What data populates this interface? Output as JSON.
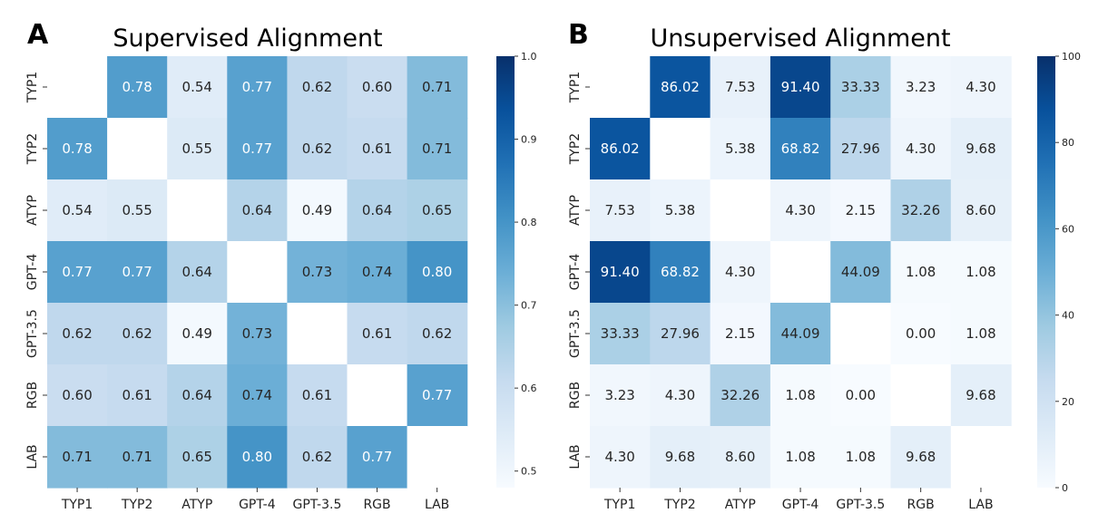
{
  "panels": [
    {
      "letter": "A",
      "title": "Supervised Alignment",
      "decimals": 2,
      "colorbar": {
        "min": 0.48,
        "max": 1.0,
        "ticks": [
          0.5,
          0.6,
          0.7,
          0.8,
          0.9,
          1.0
        ],
        "tick_labels": [
          "0.5",
          "0.6",
          "0.7",
          "0.8",
          "0.9",
          "1.0"
        ]
      }
    },
    {
      "letter": "B",
      "title": "Unsupervised Alignment",
      "decimals": 2,
      "colorbar": {
        "min": 0,
        "max": 100,
        "ticks": [
          0,
          20,
          40,
          60,
          80,
          100
        ],
        "tick_labels": [
          "0",
          "20",
          "40",
          "60",
          "80",
          "100"
        ]
      }
    }
  ],
  "chart_data": [
    {
      "type": "heatmap",
      "title": "Supervised Alignment",
      "x": [
        "TYP1",
        "TYP2",
        "ATYP",
        "GPT-4",
        "GPT-3.5",
        "RGB",
        "LAB"
      ],
      "y": [
        "TYP1",
        "TYP2",
        "ATYP",
        "GPT-4",
        "GPT-3.5",
        "RGB",
        "LAB"
      ],
      "values": [
        [
          null,
          0.78,
          0.54,
          0.77,
          0.62,
          0.6,
          0.71
        ],
        [
          0.78,
          null,
          0.55,
          0.77,
          0.62,
          0.61,
          0.71
        ],
        [
          0.54,
          0.55,
          null,
          0.64,
          0.49,
          0.64,
          0.65
        ],
        [
          0.77,
          0.77,
          0.64,
          null,
          0.73,
          0.74,
          0.8
        ],
        [
          0.62,
          0.62,
          0.49,
          0.73,
          null,
          0.61,
          0.62
        ],
        [
          0.6,
          0.61,
          0.64,
          0.74,
          0.61,
          null,
          0.77
        ],
        [
          0.71,
          0.71,
          0.65,
          0.8,
          0.62,
          0.77,
          null
        ]
      ],
      "colormap": "Blues",
      "colorbar_range": [
        0.48,
        1.0
      ]
    },
    {
      "type": "heatmap",
      "title": "Unsupervised Alignment",
      "x": [
        "TYP1",
        "TYP2",
        "ATYP",
        "GPT-4",
        "GPT-3.5",
        "RGB",
        "LAB"
      ],
      "y": [
        "TYP1",
        "TYP2",
        "ATYP",
        "GPT-4",
        "GPT-3.5",
        "RGB",
        "LAB"
      ],
      "values": [
        [
          null,
          86.02,
          7.53,
          91.4,
          33.33,
          3.23,
          4.3
        ],
        [
          86.02,
          null,
          5.38,
          68.82,
          27.96,
          4.3,
          9.68
        ],
        [
          7.53,
          5.38,
          null,
          4.3,
          2.15,
          32.26,
          8.6
        ],
        [
          91.4,
          68.82,
          4.3,
          null,
          44.09,
          1.08,
          1.08
        ],
        [
          33.33,
          27.96,
          2.15,
          44.09,
          null,
          0.0,
          1.08
        ],
        [
          3.23,
          4.3,
          32.26,
          1.08,
          0.0,
          null,
          9.68
        ],
        [
          4.3,
          9.68,
          8.6,
          1.08,
          1.08,
          9.68,
          null
        ]
      ],
      "colormap": "Blues",
      "colorbar_range": [
        0,
        100
      ]
    }
  ]
}
